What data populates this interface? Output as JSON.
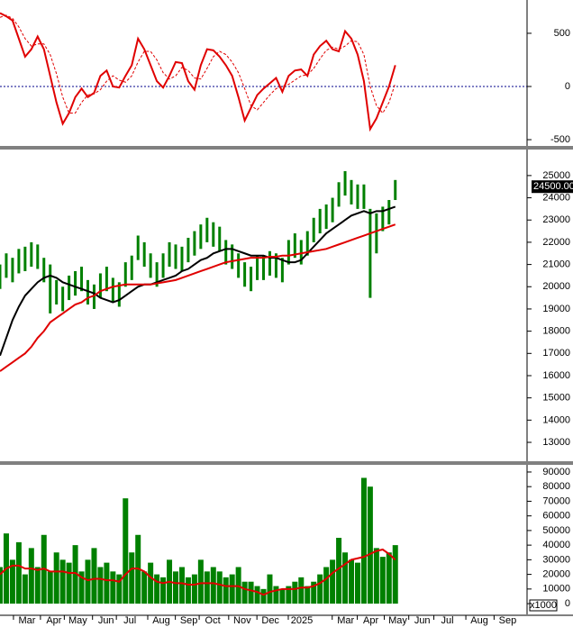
{
  "chart_data": [
    {
      "type": "line",
      "xlim": [
        0,
        84
      ],
      "ylim": [
        -559,
        813
      ],
      "yticks": [
        -500,
        0,
        500
      ],
      "reference_line": {
        "value": 0,
        "color": "#00008b"
      },
      "x": [
        0,
        1,
        2,
        3,
        4,
        5,
        6,
        7,
        8,
        9,
        10,
        11,
        12,
        13,
        14,
        15,
        16,
        17,
        18,
        19,
        20,
        21,
        22,
        23,
        24,
        25,
        26,
        27,
        28,
        29,
        30,
        31,
        32,
        33,
        34,
        35,
        36,
        37,
        38,
        39,
        40,
        41,
        42,
        43,
        44,
        45,
        46,
        47,
        48,
        49,
        50,
        51,
        52,
        53,
        54,
        55,
        56,
        57,
        58,
        59,
        60,
        61,
        62,
        63
      ],
      "lines": [
        {
          "color": "#e00000",
          "dashed": false,
          "values": [
            690,
            660,
            620,
            450,
            280,
            350,
            470,
            350,
            100,
            -150,
            -350,
            -250,
            -100,
            -20,
            -100,
            -60,
            100,
            150,
            0,
            -10,
            100,
            200,
            450,
            350,
            200,
            50,
            -10,
            100,
            230,
            220,
            50,
            -30,
            200,
            350,
            340,
            280,
            200,
            100,
            -100,
            -320,
            -200,
            -80,
            -20,
            30,
            80,
            -50,
            100,
            150,
            160,
            100,
            300,
            380,
            430,
            350,
            330,
            520,
            450,
            300,
            50,
            -400,
            -300,
            -150,
            0,
            200
          ]
        },
        {
          "color": "#e00000",
          "dashed": true,
          "values": [
            650,
            670,
            640,
            560,
            450,
            380,
            400,
            400,
            300,
            120,
            -100,
            -250,
            -250,
            -150,
            -80,
            -70,
            -30,
            50,
            100,
            60,
            40,
            100,
            230,
            330,
            330,
            250,
            130,
            70,
            100,
            180,
            150,
            80,
            70,
            170,
            280,
            330,
            300,
            230,
            130,
            -20,
            -180,
            -220,
            -150,
            -80,
            -20,
            0,
            20,
            60,
            100,
            110,
            170,
            260,
            340,
            370,
            350,
            380,
            430,
            420,
            300,
            0,
            -180,
            -250,
            -150,
            30
          ]
        }
      ]
    },
    {
      "type": "candlestick",
      "xlim": [
        0,
        84
      ],
      "ylim": [
        12150,
        26170
      ],
      "yticks": [
        13000,
        14000,
        15000,
        16000,
        17000,
        18000,
        19000,
        20000,
        21000,
        22000,
        23000,
        24000,
        25000
      ],
      "color": "#008000",
      "marker": {
        "value": 24500,
        "label": "24500.00"
      },
      "x": [
        0,
        1,
        2,
        3,
        4,
        5,
        6,
        7,
        8,
        9,
        10,
        11,
        12,
        13,
        14,
        15,
        16,
        17,
        18,
        19,
        20,
        21,
        22,
        23,
        24,
        25,
        26,
        27,
        28,
        29,
        30,
        31,
        32,
        33,
        34,
        35,
        36,
        37,
        38,
        39,
        40,
        41,
        42,
        43,
        44,
        45,
        46,
        47,
        48,
        49,
        50,
        51,
        52,
        53,
        54,
        55,
        56,
        57,
        58,
        59,
        60,
        61,
        62,
        63
      ],
      "high": [
        21000,
        21500,
        21300,
        21700,
        21800,
        22000,
        21900,
        21300,
        21000,
        20300,
        20000,
        20500,
        20700,
        20900,
        20300,
        20100,
        20600,
        20900,
        20400,
        20200,
        21100,
        21400,
        22300,
        22000,
        21500,
        21100,
        21500,
        22000,
        21900,
        21800,
        22200,
        22500,
        22800,
        23100,
        22900,
        22700,
        22100,
        21900,
        21500,
        21100,
        20900,
        21400,
        21400,
        21600,
        21500,
        21300,
        22100,
        22400,
        22100,
        22500,
        23100,
        23500,
        23700,
        24000,
        24700,
        25200,
        24800,
        24600,
        24600,
        23500,
        23300,
        23600,
        23900,
        24800
      ],
      "low": [
        19900,
        20400,
        20200,
        20600,
        20700,
        20900,
        20800,
        20200,
        18800,
        19200,
        18900,
        19400,
        19600,
        19800,
        19200,
        19000,
        19500,
        19800,
        19300,
        19100,
        20000,
        20300,
        21200,
        20900,
        20400,
        20000,
        20400,
        20900,
        20800,
        20700,
        21100,
        21400,
        21700,
        22000,
        21800,
        21600,
        21000,
        20800,
        20400,
        20000,
        19800,
        20300,
        20300,
        20500,
        20400,
        20200,
        21000,
        21300,
        21000,
        21400,
        22000,
        22400,
        22600,
        22900,
        23600,
        24100,
        23700,
        23500,
        23500,
        19500,
        21500,
        22500,
        22800,
        23900
      ],
      "lines": [
        {
          "color": "#000000",
          "dashed": false,
          "values": [
            16900,
            17700,
            18500,
            19100,
            19600,
            19900,
            20200,
            20400,
            20500,
            20400,
            20200,
            20100,
            20000,
            19900,
            19800,
            19700,
            19500,
            19400,
            19300,
            19400,
            19600,
            19800,
            20000,
            20100,
            20100,
            20200,
            20300,
            20400,
            20500,
            20700,
            20800,
            21000,
            21200,
            21300,
            21500,
            21600,
            21700,
            21700,
            21600,
            21500,
            21400,
            21400,
            21400,
            21300,
            21300,
            21200,
            21100,
            21100,
            21200,
            21500,
            21800,
            22100,
            22400,
            22600,
            22800,
            23000,
            23200,
            23300,
            23400,
            23300,
            23400,
            23400,
            23500,
            23600
          ]
        },
        {
          "color": "#e00000",
          "dashed": false,
          "values": [
            16200,
            16400,
            16600,
            16800,
            17000,
            17300,
            17700,
            18000,
            18400,
            18600,
            18800,
            19000,
            19200,
            19300,
            19500,
            19600,
            19800,
            19900,
            20000,
            20050,
            20100,
            20100,
            20100,
            20100,
            20100,
            20150,
            20200,
            20250,
            20300,
            20400,
            20500,
            20600,
            20700,
            20800,
            20900,
            21000,
            21100,
            21150,
            21200,
            21250,
            21300,
            21300,
            21300,
            21350,
            21350,
            21400,
            21400,
            21450,
            21500,
            21550,
            21600,
            21650,
            21700,
            21800,
            21900,
            22000,
            22100,
            22200,
            22300,
            22400,
            22500,
            22600,
            22700,
            22800
          ]
        }
      ]
    },
    {
      "type": "bar",
      "xlim": [
        0,
        84
      ],
      "ylim": [
        -7350,
        94900
      ],
      "yticks": [
        0,
        10000,
        20000,
        30000,
        40000,
        50000,
        60000,
        70000,
        80000,
        90000
      ],
      "unit": "x1000",
      "color": "#008000",
      "xticks": [
        {
          "value": 4.3,
          "label": "Mar"
        },
        {
          "value": 8.6,
          "label": "Apr"
        },
        {
          "value": 12.4,
          "label": "May"
        },
        {
          "value": 16.9,
          "label": "Jun"
        },
        {
          "value": 20.7,
          "label": "Jul"
        },
        {
          "value": 25.7,
          "label": "Aug"
        },
        {
          "value": 30.1,
          "label": "Sep"
        },
        {
          "value": 33.9,
          "label": "Oct"
        },
        {
          "value": 38.6,
          "label": "Nov"
        },
        {
          "value": 43.1,
          "label": "Dec"
        },
        {
          "value": 48.1,
          "label": "2025"
        },
        {
          "value": 55.1,
          "label": "Mar"
        },
        {
          "value": 59.1,
          "label": "Apr"
        },
        {
          "value": 63.4,
          "label": "May"
        },
        {
          "value": 67.3,
          "label": "Jun"
        },
        {
          "value": 71.3,
          "label": "Jul"
        },
        {
          "value": 76.4,
          "label": "Aug"
        },
        {
          "value": 80.9,
          "label": "Sep"
        }
      ],
      "x": [
        0,
        1,
        2,
        3,
        4,
        5,
        6,
        7,
        8,
        9,
        10,
        11,
        12,
        13,
        14,
        15,
        16,
        17,
        18,
        19,
        20,
        21,
        22,
        23,
        24,
        25,
        26,
        27,
        28,
        29,
        30,
        31,
        32,
        33,
        34,
        35,
        36,
        37,
        38,
        39,
        40,
        41,
        42,
        43,
        44,
        45,
        46,
        47,
        48,
        49,
        50,
        51,
        52,
        53,
        54,
        55,
        56,
        57,
        58,
        59,
        60,
        61,
        62,
        63
      ],
      "values": [
        25000,
        48000,
        30000,
        42000,
        20000,
        38000,
        25000,
        47000,
        22000,
        35000,
        30000,
        28000,
        40000,
        22000,
        30000,
        38000,
        25000,
        28000,
        22000,
        20000,
        72000,
        35000,
        47000,
        22000,
        28000,
        20000,
        18000,
        30000,
        22000,
        25000,
        18000,
        20000,
        30000,
        22000,
        25000,
        22000,
        18000,
        20000,
        25000,
        15000,
        15000,
        12000,
        10000,
        20000,
        12000,
        10000,
        12000,
        15000,
        18000,
        12000,
        15000,
        20000,
        25000,
        30000,
        45000,
        35000,
        30000,
        28000,
        86000,
        80000,
        38000,
        32000,
        35000,
        40000
      ],
      "lines": [
        {
          "color": "#e00000",
          "dashed": false,
          "values": [
            20000,
            24000,
            26000,
            26000,
            24000,
            24000,
            23000,
            24000,
            22000,
            22000,
            22000,
            21000,
            21000,
            18000,
            16000,
            17000,
            17000,
            16000,
            16000,
            15000,
            20000,
            24000,
            24000,
            22000,
            18000,
            15000,
            14000,
            15000,
            14000,
            14000,
            13000,
            13000,
            14000,
            14000,
            14000,
            13000,
            12000,
            12000,
            12000,
            10000,
            9000,
            8000,
            6000,
            8000,
            9000,
            10000,
            10000,
            10000,
            11000,
            11000,
            12000,
            14000,
            17000,
            21000,
            24000,
            27000,
            30000,
            31000,
            32000,
            34000,
            36000,
            37000,
            34000,
            30000
          ]
        }
      ]
    }
  ]
}
